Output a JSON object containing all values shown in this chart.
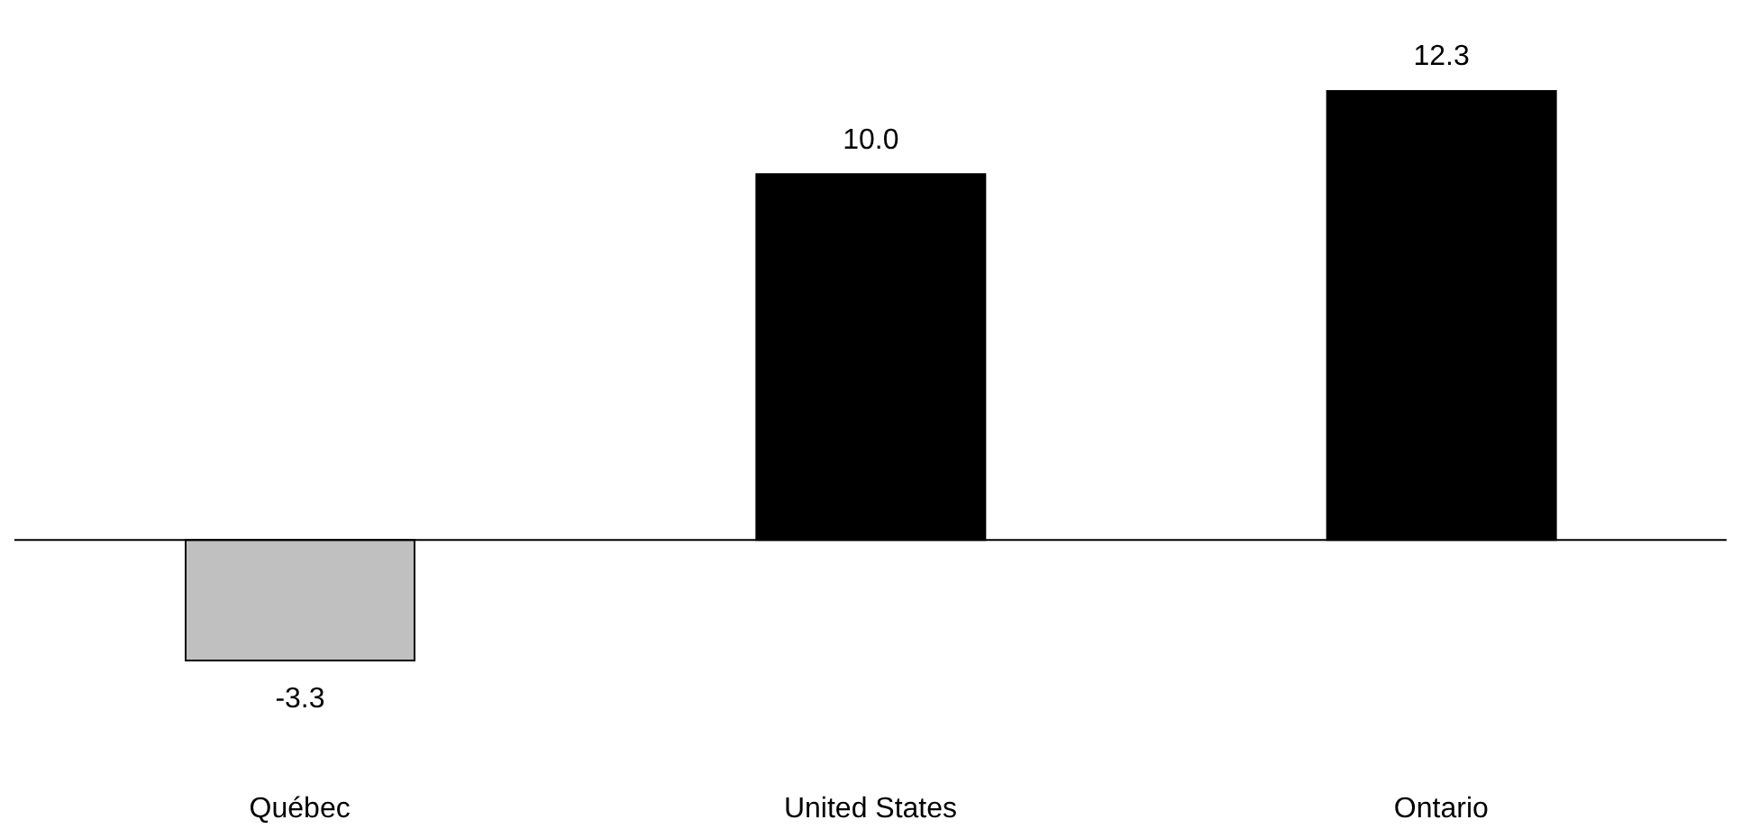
{
  "chart_data": {
    "type": "bar",
    "categories": [
      "Québec",
      "United States",
      "Ontario"
    ],
    "values": [
      -3.3,
      10.0,
      12.3
    ],
    "colors": [
      "#c0c0c0",
      "#000000",
      "#000000"
    ],
    "value_labels": [
      "-3.3",
      "10.0",
      "12.3"
    ],
    "grid": false,
    "legend": false
  }
}
